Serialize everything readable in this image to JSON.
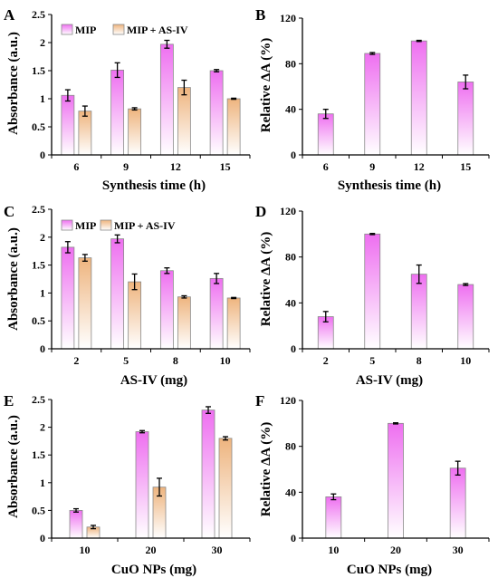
{
  "colors": {
    "mip_top": "#ee6ff0",
    "mip_bottom": "#ffffff",
    "asiv_top": "#eeb47e",
    "asiv_bottom": "#ffffff",
    "bar_edge": "#8a8a8a",
    "axis": "#000000"
  },
  "chart_data": [
    {
      "panel": "A",
      "type": "bar",
      "categories": [
        "6",
        "9",
        "12",
        "15"
      ],
      "series": [
        {
          "name": "MIP",
          "values": [
            1.06,
            1.51,
            1.97,
            1.5
          ],
          "errors": [
            0.1,
            0.13,
            0.07,
            0.02
          ]
        },
        {
          "name": "MIP + AS-IV",
          "values": [
            0.78,
            0.82,
            1.2,
            1.0
          ],
          "errors": [
            0.09,
            0.02,
            0.13,
            0.01
          ]
        }
      ],
      "xlabel": "Synthesis time (h)",
      "ylabel": "Absorbance (a.u.)",
      "ylim": [
        0,
        2.5
      ],
      "yticks": [
        "0",
        "0.5",
        "1",
        "1.5",
        "2",
        "2.5"
      ],
      "legend": "top"
    },
    {
      "panel": "B",
      "type": "bar",
      "categories": [
        "6",
        "9",
        "12",
        "15"
      ],
      "series": [
        {
          "values": [
            36,
            89,
            100,
            64
          ],
          "errors": [
            4,
            0.8,
            0.5,
            6
          ]
        }
      ],
      "xlabel": "Synthesis time (h)",
      "ylabel": "Relative ΔA  (%)",
      "ylim": [
        0,
        120
      ],
      "yticks": [
        "0",
        "40",
        "80",
        "120"
      ]
    },
    {
      "panel": "C",
      "type": "bar",
      "categories": [
        "2",
        "5",
        "8",
        "10"
      ],
      "series": [
        {
          "name": "MIP",
          "values": [
            1.82,
            1.97,
            1.4,
            1.26
          ],
          "errors": [
            0.1,
            0.07,
            0.05,
            0.09
          ]
        },
        {
          "name": "MIP + AS-IV",
          "values": [
            1.63,
            1.2,
            0.93,
            0.91
          ],
          "errors": [
            0.06,
            0.14,
            0.02,
            0.01
          ]
        }
      ],
      "xlabel": "AS-IV (mg)",
      "ylabel": "Absorbance (a.u.)",
      "ylim": [
        0,
        2.5
      ],
      "yticks": [
        "0",
        "0.5",
        "1",
        "1.5",
        "2",
        "2.5"
      ],
      "legend": "top"
    },
    {
      "panel": "D",
      "type": "bar",
      "categories": [
        "2",
        "5",
        "8",
        "10"
      ],
      "series": [
        {
          "values": [
            28,
            100,
            65,
            56
          ],
          "errors": [
            4.5,
            0.5,
            8,
            0.8
          ]
        }
      ],
      "xlabel": "AS-IV (mg)",
      "ylabel": "Relative ΔA  (%)",
      "ylim": [
        0,
        120
      ],
      "yticks": [
        "0",
        "40",
        "80",
        "120"
      ]
    },
    {
      "panel": "E",
      "type": "bar",
      "categories": [
        "10",
        "20",
        "30"
      ],
      "series": [
        {
          "name": "MIP",
          "values": [
            0.5,
            1.92,
            2.31
          ],
          "errors": [
            0.03,
            0.02,
            0.06
          ]
        },
        {
          "name": "MIP + AS-IV",
          "values": [
            0.2,
            0.92,
            1.8
          ],
          "errors": [
            0.03,
            0.16,
            0.03
          ]
        }
      ],
      "xlabel": "CuO NPs (mg)",
      "ylabel": "Absorbance (a.u.)",
      "ylim": [
        0,
        2.5
      ],
      "yticks": [
        "0",
        "0.5",
        "1",
        "1.5",
        "2",
        "2.5"
      ]
    },
    {
      "panel": "F",
      "type": "bar",
      "categories": [
        "10",
        "20",
        "30"
      ],
      "series": [
        {
          "values": [
            36,
            100,
            61
          ],
          "errors": [
            2.5,
            0.5,
            6
          ]
        }
      ],
      "xlabel": "CuO NPs (mg)",
      "ylabel": "Relative ΔA  (%)",
      "ylim": [
        0,
        120
      ],
      "yticks": [
        "0",
        "40",
        "80",
        "120"
      ]
    }
  ]
}
